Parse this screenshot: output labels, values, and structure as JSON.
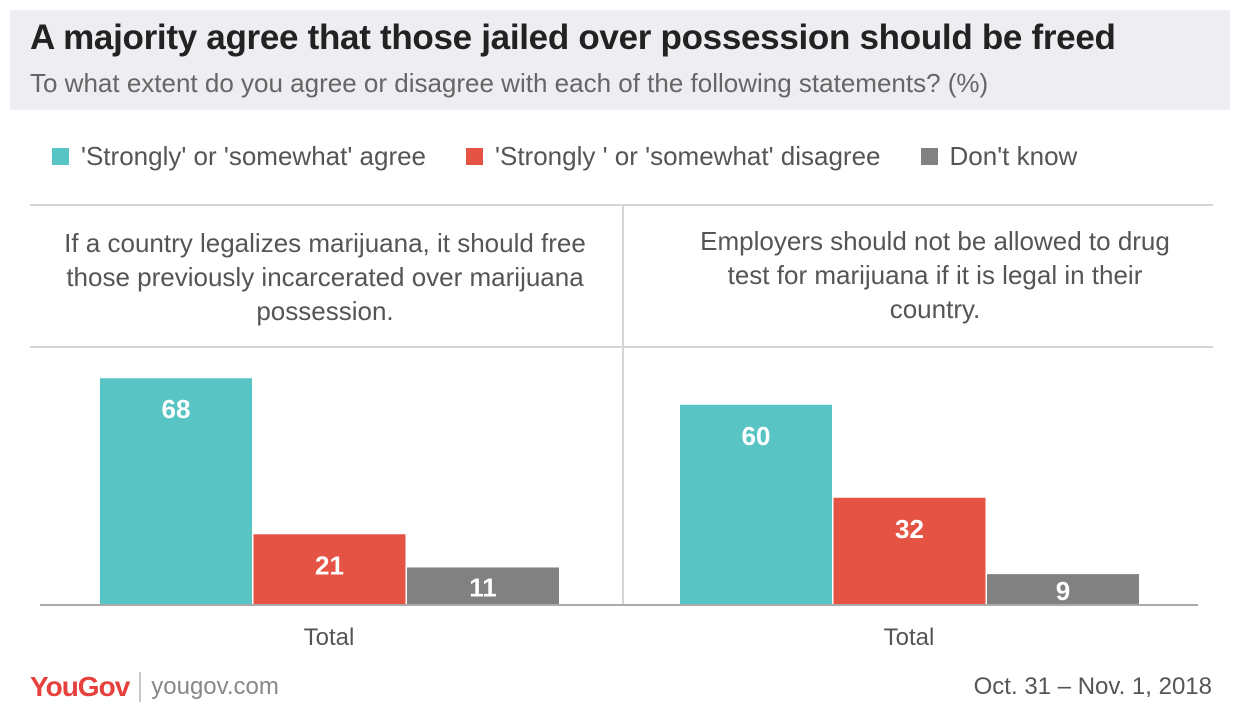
{
  "title": "A majority agree that those jailed over possession should be freed",
  "subtitle": "To what extent do you agree or disagree with each of the following statements? (%)",
  "legend": [
    {
      "label": "'Strongly' or 'somewhat' agree",
      "color": "#58c4c4"
    },
    {
      "label": "'Strongly ' or 'somewhat' disagree",
      "color": "#e45344"
    },
    {
      "label": "Don't know",
      "color": "#818181"
    }
  ],
  "panels": [
    {
      "question": "If a country legalizes marijuana, it should free those previously incarcerated over marijuana possession.",
      "category": "Total"
    },
    {
      "question": "Employers should not be allowed to drug test for marijuana if it is legal in their country.",
      "category": "Total"
    }
  ],
  "chart_data": [
    {
      "type": "bar",
      "title": "If a country legalizes marijuana, it should free those previously incarcerated over marijuana possession.",
      "categories": [
        "Total"
      ],
      "series": [
        {
          "name": "'Strongly' or 'somewhat' agree",
          "values": [
            68
          ]
        },
        {
          "name": "'Strongly ' or 'somewhat' disagree",
          "values": [
            21
          ]
        },
        {
          "name": "Don't know",
          "values": [
            11
          ]
        }
      ],
      "ylim": [
        0,
        75
      ],
      "grid": false,
      "legend": "top"
    },
    {
      "type": "bar",
      "title": "Employers should not be allowed to drug test for marijuana if it is legal in their country.",
      "categories": [
        "Total"
      ],
      "series": [
        {
          "name": "'Strongly' or 'somewhat' agree",
          "values": [
            60
          ]
        },
        {
          "name": "'Strongly ' or 'somewhat' disagree",
          "values": [
            32
          ]
        },
        {
          "name": "Don't know",
          "values": [
            9
          ]
        }
      ],
      "ylim": [
        0,
        75
      ],
      "grid": false,
      "legend": "top"
    }
  ],
  "footer": {
    "logo": "YouGov",
    "url": "yougov.com",
    "date": "Oct. 31 – Nov. 1, 2018"
  }
}
